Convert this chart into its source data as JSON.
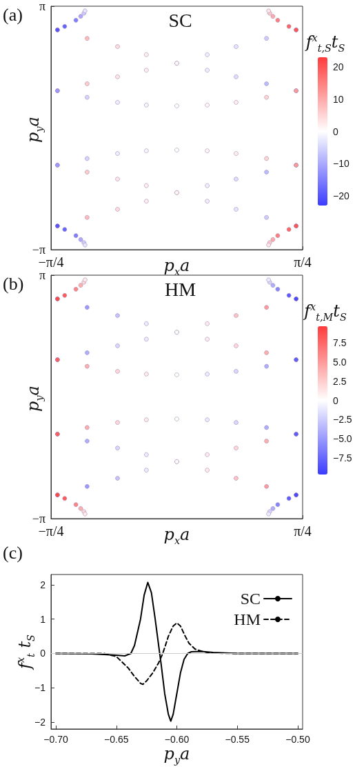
{
  "chart_data": [
    {
      "type": "scatter",
      "title": "SC",
      "annotations": [
        "(a)"
      ],
      "xlabel": "p$_{x}$a",
      "ylabel": "p$_{y}$a",
      "clabel": "f$^{x}$$_{t,S}$t$_{S}$",
      "xlim": [
        -0.7854,
        0.7854
      ],
      "xticks": [
        {
          "value": -0.7854,
          "label": "−π/4"
        },
        {
          "value": 0.7854,
          "label": "π/4"
        }
      ],
      "ylim": [
        -3.1416,
        3.1416
      ],
      "yticks": [
        {
          "value": -3.1416,
          "label": "−π"
        },
        {
          "value": 3.1416,
          "label": "π"
        }
      ],
      "clim": [
        -23,
        23
      ],
      "cticks": [
        {
          "value": -20,
          "label": "−20"
        },
        {
          "value": -10,
          "label": "−10"
        },
        0,
        10,
        20
      ],
      "marker": "circle",
      "x": [
        -0.745,
        -0.56,
        -0.37,
        -0.19,
        0,
        0.19,
        0.37,
        0.56,
        0.745,
        -0.745,
        -0.56,
        -0.37,
        -0.19,
        0,
        0.19,
        0.37,
        0.56,
        0.745,
        -0.745,
        -0.56,
        -0.37,
        -0.19,
        0,
        0.19,
        0.37,
        0.56,
        0.745,
        -0.745,
        -0.56,
        -0.37,
        -0.19,
        0,
        0.19,
        0.37,
        0.56,
        0.745,
        -0.745,
        -0.56,
        -0.37,
        -0.19,
        0,
        0.19,
        0.37,
        0.56,
        0.745,
        -0.745,
        -0.56,
        -0.37,
        -0.19,
        0,
        0.19,
        0.37,
        0.56,
        0.745,
        -0.745,
        -0.7,
        -0.63,
        -0.6,
        -0.58,
        -0.573,
        0.745,
        0.7,
        0.63,
        0.6,
        0.58,
        0.573,
        -0.745,
        -0.7,
        -0.63,
        -0.6,
        -0.58,
        -0.573,
        0.745,
        0.7,
        0.63,
        0.6,
        0.58,
        0.573
      ],
      "values": [
        2.53,
        2.31,
        2.1,
        1.89,
        1.67,
        1.49,
        1.32,
        1.14,
        0.96,
        0.96,
        1.14,
        1.32,
        1.49,
        1.67,
        1.89,
        2.1,
        2.31,
        2.53,
        0.96,
        0.79,
        0.66,
        0.59,
        0.57,
        0.59,
        0.66,
        0.79,
        0.96,
        -0.96,
        -1.14,
        -1.32,
        -1.49,
        -1.67,
        -1.89,
        -2.1,
        -2.31,
        -2.53,
        -2.53,
        -2.31,
        -2.1,
        -1.89,
        -1.67,
        -1.49,
        -1.32,
        -1.14,
        -0.96,
        -0.96,
        -0.79,
        -0.66,
        -0.59,
        -0.57,
        -0.59,
        -0.66,
        -0.79,
        -0.96,
        2.53,
        2.62,
        2.78,
        2.88,
        2.96,
        3.02,
        2.53,
        2.62,
        2.78,
        2.88,
        2.96,
        3.02,
        -2.53,
        -2.62,
        -2.78,
        -2.88,
        -2.96,
        -3.02,
        -2.53,
        -2.62,
        -2.78,
        -2.88,
        -2.96,
        -3.02
      ],
      "cvalues": [
        15,
        8,
        4,
        2,
        1,
        -2,
        -4,
        -8,
        -15,
        12,
        6,
        3,
        2,
        1,
        -2,
        -3,
        -6,
        -15,
        -12,
        -5,
        -2,
        -1,
        0,
        1,
        2,
        5,
        12,
        12,
        6,
        3,
        2,
        1,
        -2,
        -3,
        -6,
        -15,
        15,
        8,
        4,
        2,
        1,
        -2,
        -4,
        -8,
        -15,
        -12,
        -5,
        -2,
        -1,
        0,
        1,
        2,
        5,
        12,
        -20,
        -18,
        -15,
        -10,
        -6,
        -3,
        20,
        18,
        15,
        10,
        6,
        3,
        -20,
        -18,
        -15,
        -10,
        -6,
        -3,
        20,
        18,
        15,
        10,
        6,
        3
      ]
    },
    {
      "type": "scatter",
      "title": "HM",
      "annotations": [
        "(b)"
      ],
      "xlabel": "p$_{x}$a",
      "ylabel": "p$_{y}$a",
      "clabel": "f$^{x}$$_{t,M}$t$_{S}$",
      "xlim": [
        -0.7854,
        0.7854
      ],
      "xticks": [
        {
          "value": -0.7854,
          "label": "−π/4"
        },
        {
          "value": 0.7854,
          "label": "π/4"
        }
      ],
      "ylim": [
        -3.1416,
        3.1416
      ],
      "yticks": [
        {
          "value": -3.1416,
          "label": "−π"
        },
        {
          "value": 3.1416,
          "label": "π"
        }
      ],
      "clim": [
        -9.7,
        9.7
      ],
      "cticks": [
        {
          "value": -7.5,
          "label": "−7.5"
        },
        {
          "value": -5,
          "label": "−5.0"
        },
        {
          "value": -2.5,
          "label": "−2.5"
        },
        0,
        2.5,
        {
          "value": 5,
          "label": "5.0"
        },
        7.5
      ],
      "marker": "circle",
      "x": [
        -0.745,
        -0.56,
        -0.37,
        -0.19,
        0,
        0.19,
        0.37,
        0.56,
        0.745,
        -0.745,
        -0.56,
        -0.37,
        -0.19,
        0,
        0.19,
        0.37,
        0.56,
        0.745,
        -0.745,
        -0.56,
        -0.37,
        -0.19,
        0,
        0.19,
        0.37,
        0.56,
        0.745,
        -0.745,
        -0.56,
        -0.37,
        -0.19,
        0,
        0.19,
        0.37,
        0.56,
        0.745,
        -0.745,
        -0.56,
        -0.37,
        -0.19,
        0,
        0.19,
        0.37,
        0.56,
        0.745,
        -0.745,
        -0.56,
        -0.37,
        -0.19,
        0,
        0.19,
        0.37,
        0.56,
        0.745,
        -0.745,
        -0.7,
        -0.63,
        -0.6,
        -0.58,
        -0.573,
        0.745,
        0.7,
        0.63,
        0.6,
        0.58,
        0.573,
        -0.745,
        -0.7,
        -0.63,
        -0.6,
        -0.58,
        -0.573,
        0.745,
        0.7,
        0.63,
        0.6,
        0.58,
        0.573
      ],
      "values": [
        2.53,
        2.31,
        2.1,
        1.89,
        1.67,
        1.49,
        1.32,
        1.14,
        0.96,
        0.96,
        1.14,
        1.32,
        1.49,
        1.67,
        1.89,
        2.1,
        2.31,
        2.53,
        0.96,
        0.79,
        0.66,
        0.59,
        0.57,
        0.59,
        0.66,
        0.79,
        0.96,
        -0.96,
        -1.14,
        -1.32,
        -1.49,
        -1.67,
        -1.89,
        -2.1,
        -2.31,
        -2.53,
        -2.53,
        -2.31,
        -2.1,
        -1.89,
        -1.67,
        -1.49,
        -1.32,
        -1.14,
        -0.96,
        -0.96,
        -0.79,
        -0.66,
        -0.59,
        -0.57,
        -0.59,
        -0.66,
        -0.79,
        -0.96,
        2.53,
        2.62,
        2.78,
        2.88,
        2.96,
        3.02,
        2.53,
        2.62,
        2.78,
        2.88,
        2.96,
        3.02,
        -2.53,
        -2.62,
        -2.78,
        -2.88,
        -2.96,
        -3.02,
        -2.53,
        -2.62,
        -2.78,
        -2.88,
        -2.96,
        -3.02
      ],
      "cvalues": [
        -8,
        -5,
        -3,
        -1,
        0,
        1,
        2,
        4,
        8,
        -8,
        -4,
        -2,
        -1,
        0,
        1,
        3,
        5,
        8,
        8,
        4,
        2,
        1,
        0,
        -1,
        -2,
        -4,
        -8,
        -8,
        -4,
        -2,
        -1,
        0,
        1,
        3,
        5,
        8,
        -8,
        -5,
        -3,
        -1,
        0,
        1,
        2,
        4,
        8,
        8,
        4,
        2,
        1,
        0,
        -1,
        -2,
        -4,
        -8,
        9,
        8,
        6,
        4,
        2,
        1,
        -9,
        -8,
        -6,
        -4,
        -2,
        -1,
        9,
        8,
        6,
        4,
        2,
        1,
        -9,
        -8,
        -6,
        -4,
        -2,
        -1
      ]
    },
    {
      "type": "line",
      "annotations": [
        "(c)"
      ],
      "xlabel": "p$_{y}$a",
      "ylabel": "f$^{x}$$_{t}$ t$_{S}$",
      "legend": "top right",
      "marker": "none",
      "xlim": [
        -0.704,
        -0.496
      ],
      "xticks": [
        {
          "value": -0.7,
          "label": "−0.70"
        },
        {
          "value": -0.65,
          "label": "−0.65"
        },
        {
          "value": -0.6,
          "label": "−0.60"
        },
        {
          "value": -0.55,
          "label": "−0.55"
        },
        {
          "value": -0.5,
          "label": "−0.50"
        }
      ],
      "ylim": [
        -2.2,
        2.3
      ],
      "yticks": [
        {
          "value": -2,
          "label": "−2"
        },
        {
          "value": -1,
          "label": "−1"
        },
        0,
        1,
        2
      ],
      "ref_lines": [
        {
          "axis": "y",
          "value": 0,
          "color": "#cccccc"
        }
      ],
      "series": [
        {
          "name": "SC",
          "color": "#000000",
          "line_style": "solid",
          "x": [
            -0.7,
            -0.67,
            -0.65,
            -0.643,
            -0.638,
            -0.635,
            -0.63,
            -0.627,
            -0.624,
            -0.621,
            -0.618,
            -0.615,
            -0.613,
            -0.61,
            -0.607,
            -0.605,
            -0.603,
            -0.6,
            -0.597,
            -0.594,
            -0.591,
            -0.588,
            -0.58,
            -0.57,
            -0.55,
            -0.5
          ],
          "values": [
            0,
            -0.01,
            -0.05,
            -0.07,
            0,
            0.23,
            1.0,
            1.7,
            2.07,
            1.77,
            1.03,
            0.23,
            -0.3,
            -1.17,
            -1.77,
            -1.97,
            -1.77,
            -1.17,
            -0.57,
            -0.17,
            0,
            0.05,
            0.06,
            0.03,
            0,
            0
          ]
        },
        {
          "name": "HM",
          "color": "#000000",
          "line_style": "dashed",
          "x": [
            -0.7,
            -0.66,
            -0.65,
            -0.64,
            -0.635,
            -0.63,
            -0.628,
            -0.625,
            -0.62,
            -0.615,
            -0.612,
            -0.61,
            -0.607,
            -0.603,
            -0.6,
            -0.597,
            -0.593,
            -0.59,
            -0.585,
            -0.58,
            -0.575,
            -0.57,
            -0.55,
            -0.5
          ],
          "values": [
            0,
            0,
            -0.09,
            -0.43,
            -0.67,
            -0.87,
            -0.9,
            -0.8,
            -0.57,
            -0.27,
            -0.03,
            0.17,
            0.5,
            0.8,
            0.89,
            0.8,
            0.5,
            0.3,
            0.13,
            0.07,
            0.03,
            0.01,
            0,
            0
          ]
        }
      ]
    }
  ]
}
